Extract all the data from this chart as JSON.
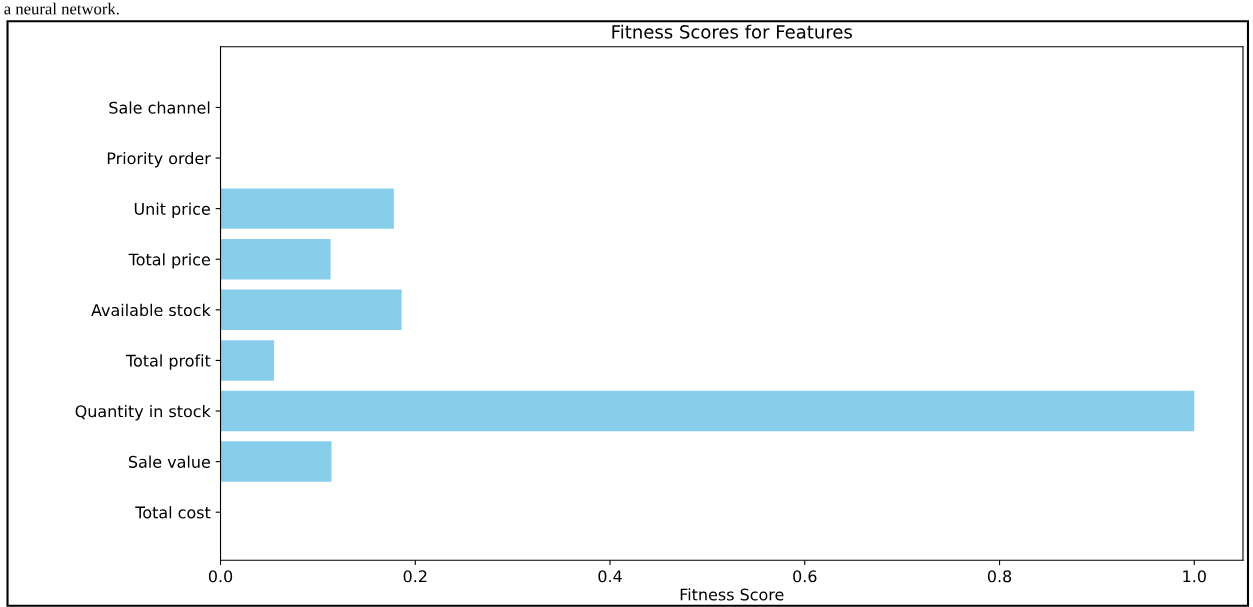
{
  "chart_data": {
    "type": "bar",
    "orientation": "horizontal",
    "title": "Fitness Scores for Features",
    "xlabel": "Fitness Score",
    "categories": [
      "Sale channel",
      "Priority order",
      "Unit price",
      "Total price",
      "Available stock",
      "Total profit",
      "Quantity in stock",
      "Sale value",
      "Total cost"
    ],
    "values": [
      0,
      0,
      0.178,
      0.113,
      0.186,
      0.055,
      1.0,
      0.114,
      0
    ],
    "color": "#87ceeb",
    "xlim": [
      0,
      1.05
    ],
    "xticks": [
      {
        "value": 0,
        "label": "0.0"
      },
      {
        "value": 0.2,
        "label": "0.2"
      },
      {
        "value": 0.4,
        "label": "0.4"
      },
      {
        "value": 0.6,
        "label": "0.6"
      },
      {
        "value": 0.8,
        "label": "0.8"
      },
      {
        "value": 1.0,
        "label": "1.0"
      }
    ],
    "annotations": [
      "a neural network."
    ]
  }
}
